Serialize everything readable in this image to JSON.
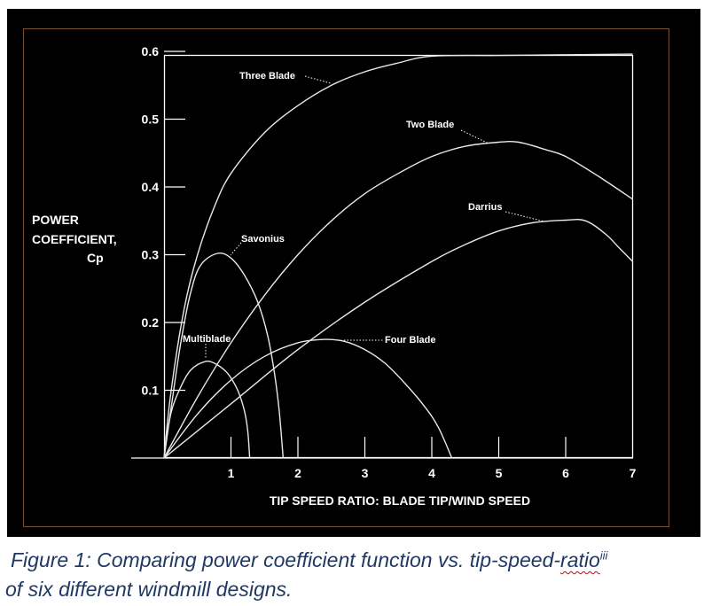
{
  "chart_data": {
    "type": "line",
    "title": "",
    "xlabel": "TIP SPEED RATIO: BLADE TIP/WIND SPEED",
    "ylabel_lines": [
      "POWER",
      "COEFFICIENT,",
      "Cp"
    ],
    "xlim": [
      0,
      7
    ],
    "ylim": [
      0,
      0.6
    ],
    "x_ticks": [
      "1",
      "2",
      "3",
      "4",
      "5",
      "6",
      "7"
    ],
    "y_ticks": [
      "0.1",
      "0.2",
      "0.3",
      "0.4",
      "0.5",
      "0.6"
    ],
    "grid": false,
    "series": [
      {
        "name": "Three Blade",
        "points": [
          [
            0,
            0
          ],
          [
            0.1,
            0.095
          ],
          [
            0.3,
            0.22
          ],
          [
            0.5,
            0.3
          ],
          [
            0.75,
            0.37
          ],
          [
            1,
            0.42
          ],
          [
            1.5,
            0.48
          ],
          [
            2,
            0.52
          ],
          [
            2.5,
            0.55
          ],
          [
            3,
            0.57
          ],
          [
            3.5,
            0.583
          ],
          [
            4,
            0.593
          ],
          [
            5,
            0.594
          ],
          [
            6,
            0.595
          ],
          [
            7,
            0.596
          ]
        ]
      },
      {
        "name": "Two Blade",
        "points": [
          [
            0,
            0
          ],
          [
            0.5,
            0.09
          ],
          [
            1,
            0.17
          ],
          [
            1.5,
            0.24
          ],
          [
            2,
            0.3
          ],
          [
            2.5,
            0.35
          ],
          [
            3,
            0.39
          ],
          [
            3.5,
            0.42
          ],
          [
            4,
            0.445
          ],
          [
            4.5,
            0.46
          ],
          [
            5,
            0.466
          ],
          [
            5.3,
            0.466
          ],
          [
            5.7,
            0.455
          ],
          [
            6,
            0.445
          ],
          [
            6.5,
            0.415
          ],
          [
            7,
            0.382
          ]
        ]
      },
      {
        "name": "Darrius",
        "points": [
          [
            0,
            0
          ],
          [
            1,
            0.08
          ],
          [
            2,
            0.16
          ],
          [
            3,
            0.23
          ],
          [
            4,
            0.29
          ],
          [
            4.5,
            0.315
          ],
          [
            5,
            0.335
          ],
          [
            5.5,
            0.347
          ],
          [
            6,
            0.351
          ],
          [
            6.3,
            0.35
          ],
          [
            6.6,
            0.33
          ],
          [
            6.8,
            0.31
          ],
          [
            7,
            0.29
          ]
        ]
      },
      {
        "name": "Savonius",
        "points": [
          [
            0,
            0
          ],
          [
            0.1,
            0.07
          ],
          [
            0.25,
            0.17
          ],
          [
            0.4,
            0.245
          ],
          [
            0.55,
            0.285
          ],
          [
            0.8,
            0.302
          ],
          [
            1,
            0.295
          ],
          [
            1.2,
            0.27
          ],
          [
            1.4,
            0.23
          ],
          [
            1.55,
            0.18
          ],
          [
            1.65,
            0.125
          ],
          [
            1.72,
            0.07
          ],
          [
            1.78,
            0
          ]
        ]
      },
      {
        "name": "Multiblade",
        "points": [
          [
            0,
            0
          ],
          [
            0.1,
            0.065
          ],
          [
            0.25,
            0.105
          ],
          [
            0.4,
            0.13
          ],
          [
            0.6,
            0.142
          ],
          [
            0.75,
            0.14
          ],
          [
            0.95,
            0.125
          ],
          [
            1.1,
            0.1
          ],
          [
            1.2,
            0.07
          ],
          [
            1.25,
            0.04
          ],
          [
            1.28,
            0
          ]
        ]
      },
      {
        "name": "Four Blade",
        "points": [
          [
            0,
            0
          ],
          [
            0.5,
            0.065
          ],
          [
            1,
            0.115
          ],
          [
            1.5,
            0.15
          ],
          [
            2,
            0.17
          ],
          [
            2.4,
            0.175
          ],
          [
            2.7,
            0.172
          ],
          [
            3,
            0.16
          ],
          [
            3.3,
            0.14
          ],
          [
            3.6,
            0.11
          ],
          [
            3.9,
            0.075
          ],
          [
            4.1,
            0.045
          ],
          [
            4.3,
            0
          ]
        ]
      }
    ]
  },
  "caption": {
    "prefix": "Figure 1: Comparing power coefficient function vs. tip-speed-",
    "underlined": "ratio",
    "superscript": "iii",
    "line2": "of six different windmill designs."
  }
}
